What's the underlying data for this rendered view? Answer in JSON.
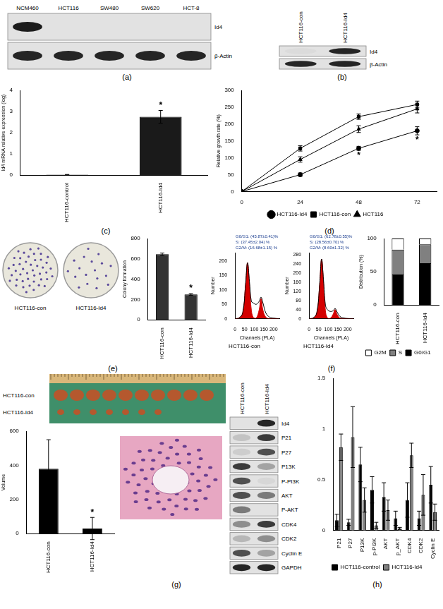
{
  "panel_labels": [
    "(a)",
    "(b)",
    "(c)",
    "(d)",
    "(e)",
    "(f)",
    "(g)",
    "(h)"
  ],
  "blots": [
    {
      "lanes": [
        "NCM460",
        "HCT116",
        "SW480",
        "SW620",
        "HCT-8"
      ],
      "rows": [
        {
          "name": "Id4",
          "intensity": [
            0.95,
            0,
            0,
            0,
            0
          ]
        },
        {
          "name": "β-Actin",
          "intensity": [
            0.9,
            0.9,
            0.9,
            0.9,
            0.9
          ]
        }
      ]
    },
    {
      "lanes": [
        "HCT116-con",
        "HCT116-Id4"
      ],
      "rows": [
        {
          "name": "Id4",
          "intensity": [
            0.03,
            0.9
          ]
        },
        {
          "name": "β-Actin",
          "intensity": [
            0.9,
            0.9
          ]
        }
      ]
    },
    {
      "lanes": [
        "HCT116-con",
        "HCT116-Id4"
      ],
      "rows": [
        {
          "name": "Id4",
          "intensity": [
            0,
            0.9
          ]
        },
        {
          "name": "P21",
          "intensity": [
            0.15,
            0.8
          ]
        },
        {
          "name": "P27",
          "intensity": [
            0.1,
            0.7
          ]
        },
        {
          "name": "P13K",
          "intensity": [
            0.8,
            0.3
          ]
        },
        {
          "name": "P-PI3K",
          "intensity": [
            0.7,
            0.05
          ]
        },
        {
          "name": "AKT",
          "intensity": [
            0.7,
            0.5
          ]
        },
        {
          "name": "P-AKT",
          "intensity": [
            0.5,
            0
          ]
        },
        {
          "name": "CDK4",
          "intensity": [
            0.4,
            0.8
          ]
        },
        {
          "name": "CDK2",
          "intensity": [
            0.2,
            0.4
          ]
        },
        {
          "name": "Cyclin E",
          "intensity": [
            0.7,
            0.3
          ]
        },
        {
          "name": "GAPDH",
          "intensity": [
            0.9,
            0.9
          ]
        }
      ]
    }
  ],
  "images": [
    {
      "labels": [
        "HCT116-con",
        "HCT116-Id4"
      ]
    },
    {
      "labels": [
        "HCT116-con",
        "HCT116-Id4"
      ]
    }
  ],
  "chart_data": [
    {
      "type": "bar",
      "categories": [
        "HCT116-control",
        "HCT116-Id4"
      ],
      "values": [
        0.02,
        2.75
      ],
      "errors": [
        0.01,
        0.3
      ],
      "color": "#1a1a1a",
      "ylabel": "Id4 mRNA relative expression (log)",
      "ylim": [
        0,
        4
      ],
      "yticks": [
        0,
        1,
        2,
        3,
        4
      ],
      "grid": false,
      "annotations": [
        {
          "text": "*",
          "index": 1
        }
      ]
    },
    {
      "type": "line",
      "x": [
        0,
        24,
        48,
        72
      ],
      "xlim": [
        0,
        80
      ],
      "xticks": [
        0,
        24,
        48,
        72
      ],
      "ylim": [
        0,
        300
      ],
      "yticks": [
        0,
        50,
        100,
        150,
        200,
        250,
        300
      ],
      "ylabel": "Relative growth rate (%)",
      "grid": false,
      "legend": "bottom",
      "series": [
        {
          "name": "HCT116-Id4",
          "color": "#000000",
          "marker": "circle",
          "line_style": "solid",
          "values": [
            0,
            50,
            128,
            180
          ],
          "errors": [
            0,
            5,
            6,
            12
          ]
        },
        {
          "name": "HCT116-con",
          "color": "#000000",
          "marker": "square",
          "line_style": "solid",
          "values": [
            0,
            128,
            222,
            258
          ],
          "errors": [
            0,
            8,
            8,
            10
          ]
        },
        {
          "name": "HCT116",
          "color": "#000000",
          "marker": "triangle",
          "line_style": "solid",
          "values": [
            0,
            95,
            185,
            245
          ],
          "errors": [
            0,
            8,
            10,
            12
          ]
        }
      ],
      "annotations": [
        {
          "text": "*",
          "series": 0,
          "index": 2
        },
        {
          "text": "*",
          "series": 0,
          "index": 3
        }
      ]
    },
    {
      "type": "bar",
      "categories": [
        "HCT116-con",
        "HCT116-Id4"
      ],
      "values": [
        645,
        250
      ],
      "errors": [
        12,
        8
      ],
      "color": "#333333",
      "ylabel": "Colony formation",
      "ylim": [
        0,
        800
      ],
      "yticks": [
        0,
        200,
        400,
        600,
        800
      ],
      "grid": false,
      "annotations": [
        {
          "text": "*",
          "index": 1
        }
      ]
    },
    {
      "type": "line",
      "title": "HCT116-con",
      "xlabel": "Channels (PLA)",
      "ylabel": "Number",
      "x": [
        0,
        20,
        40,
        55,
        65,
        75,
        85,
        95,
        110,
        125,
        135,
        145,
        160,
        180,
        200,
        230
      ],
      "xlim": [
        0,
        230
      ],
      "xticks": [
        0,
        50,
        100,
        150,
        200
      ],
      "ylim": [
        0,
        230
      ],
      "yticks": [
        0,
        50,
        100,
        150,
        200
      ],
      "grid": false,
      "series": [
        {
          "type": "line",
          "color": "#000000",
          "values": [
            0,
            2,
            20,
            120,
            195,
            130,
            60,
            55,
            50,
            60,
            75,
            55,
            20,
            5,
            2,
            0
          ]
        },
        {
          "type": "area",
          "color": "#d40000",
          "values": [
            0,
            2,
            20,
            120,
            195,
            120,
            30,
            5,
            2,
            30,
            70,
            30,
            5,
            0,
            0,
            0
          ]
        }
      ],
      "annotations": [
        {
          "text": "G0/G1: (45.87±0.41)%"
        },
        {
          "text": "S: (37.45±2.04) %"
        },
        {
          "text": "G2/M: (16.68±1.15) %"
        }
      ]
    },
    {
      "type": "line",
      "title": "HCT116-Id4",
      "xlabel": "Channels (PLA)",
      "ylabel": "Number",
      "x": [
        0,
        20,
        40,
        55,
        65,
        75,
        85,
        95,
        110,
        125,
        135,
        145,
        160,
        180,
        200,
        230
      ],
      "xlim": [
        0,
        230
      ],
      "xticks": [
        0,
        50,
        100,
        150,
        200
      ],
      "ylim": [
        0,
        290
      ],
      "yticks": [
        0,
        40,
        80,
        120,
        160,
        200,
        240,
        280
      ],
      "grid": false,
      "series": [
        {
          "type": "line",
          "color": "#000000",
          "values": [
            0,
            2,
            25,
            150,
            262,
            170,
            60,
            40,
            32,
            35,
            45,
            30,
            10,
            3,
            1,
            0
          ]
        },
        {
          "type": "area",
          "color": "#d40000",
          "values": [
            0,
            2,
            25,
            150,
            262,
            160,
            35,
            4,
            2,
            20,
            40,
            20,
            3,
            0,
            0,
            0
          ]
        }
      ],
      "annotations": [
        {
          "text": "G0/G1: (62.78±0.55)%"
        },
        {
          "text": "S: (28.56±0.70) %"
        },
        {
          "text": "G2/M: (8.60±1.32) %"
        }
      ]
    },
    {
      "type": "bar",
      "stacked": true,
      "categories": [
        "HCT116-con",
        "HCT116-Id4"
      ],
      "ylabel": "Distribution (%)",
      "ylim": [
        0,
        100
      ],
      "yticks": [
        0,
        50,
        100
      ],
      "grid": false,
      "legend": "bottom",
      "series": [
        {
          "name": "G0/G1",
          "color": "#000000",
          "values": [
            45.87,
            62.78
          ]
        },
        {
          "name": "S",
          "color": "#808080",
          "values": [
            37.45,
            28.56
          ]
        },
        {
          "name": "G2M",
          "color": "#ffffff",
          "values": [
            16.68,
            8.6
          ]
        }
      ]
    },
    {
      "type": "bar",
      "categories": [
        "HCT116-con",
        "HCT116-Id4"
      ],
      "values": [
        380,
        30
      ],
      "errors": [
        170,
        65
      ],
      "color": "#000000",
      "ylabel": "Volume",
      "ylim": [
        0,
        600
      ],
      "yticks": [
        0,
        200,
        400,
        600
      ],
      "grid": false,
      "annotations": [
        {
          "text": "*",
          "index": 1
        }
      ]
    },
    {
      "type": "bar",
      "categories": [
        "P21",
        "P27",
        "P13K",
        "p-PI3K",
        "AKT",
        "p_AKT",
        "CDK4",
        "CDK2",
        "Cyclin E"
      ],
      "ylim": [
        0,
        1.5
      ],
      "yticks": [
        0,
        0.5,
        1,
        1.5
      ],
      "grid": false,
      "legend": "bottom",
      "series": [
        {
          "name": "HCT116-control",
          "color": "#000000",
          "values": [
            0.1,
            0.08,
            0.65,
            0.4,
            0.33,
            0.12,
            0.3,
            0.12,
            0.45
          ],
          "errors": [
            0.06,
            0.03,
            0.17,
            0.13,
            0.14,
            0.07,
            0.17,
            0.07,
            0.18
          ]
        },
        {
          "name": "HCT116-Id4",
          "color": "#808080",
          "values": [
            0.82,
            0.92,
            0.3,
            0.05,
            0.2,
            0.02,
            0.74,
            0.35,
            0.18
          ],
          "errors": [
            0.13,
            0.3,
            0.12,
            0.03,
            0.1,
            0.01,
            0.12,
            0.2,
            0.08
          ]
        }
      ]
    }
  ]
}
